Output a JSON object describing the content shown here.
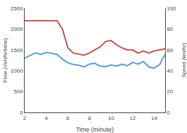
{
  "chart_data": {
    "type": "line",
    "xlabel": "Time (minute)",
    "ylabel": "Flow (Veh/hr/lane)",
    "y2label": "Speed (km/hr)",
    "x": [
      2,
      2.5,
      3,
      3.5,
      4,
      4.5,
      5,
      5.5,
      6,
      6.5,
      7,
      7.5,
      8,
      8.5,
      9,
      9.5,
      10,
      10.5,
      11,
      11.5,
      12,
      12.5,
      13,
      13.5,
      14,
      14.5,
      15
    ],
    "series": [
      {
        "color": "#5b9bd5",
        "values": [
          1300,
          1370,
          1430,
          1390,
          1440,
          1420,
          1390,
          1280,
          1190,
          1150,
          1130,
          1090,
          1160,
          1180,
          1110,
          1100,
          1140,
          1110,
          1160,
          1120,
          1200,
          1160,
          1220,
          1090,
          1060,
          1150,
          1390
        ]
      },
      {
        "color": "#c0504d",
        "axis": "y2",
        "values": [
          88,
          88,
          88,
          88,
          88,
          88,
          88,
          80,
          62,
          57,
          56,
          55,
          57,
          60,
          63,
          68,
          69,
          65,
          62,
          60,
          60,
          57,
          59,
          57,
          59,
          60,
          61
        ]
      }
    ],
    "xlim": [
      2,
      15
    ],
    "xticks": [
      2,
      4,
      6,
      8,
      10,
      12,
      14
    ],
    "ylim": [
      0,
      2500
    ],
    "yticks": [
      0,
      500,
      1000,
      1500,
      2000,
      2500
    ],
    "y2lim": [
      0,
      100
    ],
    "y2ticks": [
      0,
      20,
      40,
      60,
      80,
      100
    ],
    "grid": false
  }
}
